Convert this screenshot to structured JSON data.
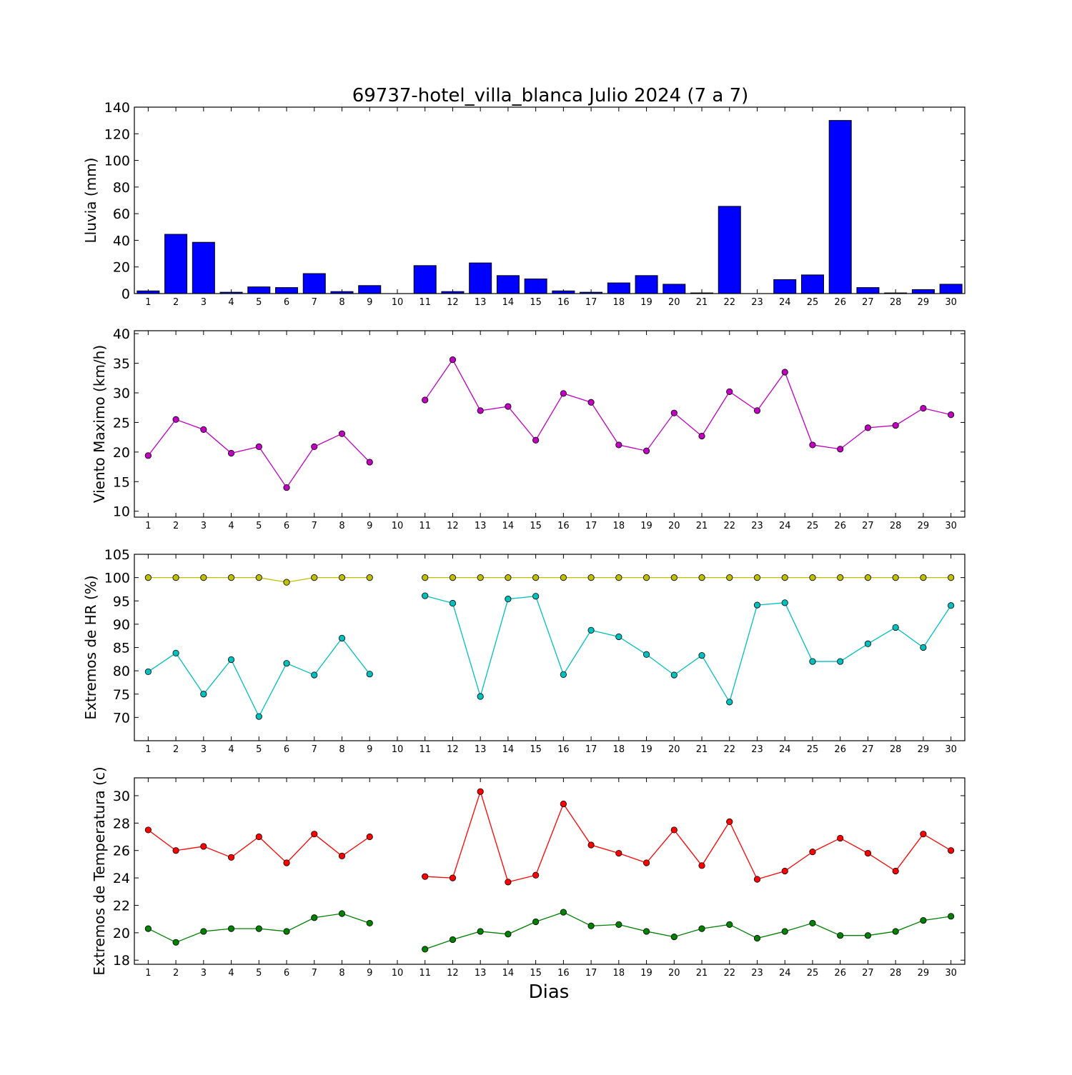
{
  "title": "69737-hotel_villa_blanca Julio 2024  (7 a 7)",
  "xlabel": "Dias",
  "days": [
    1,
    2,
    3,
    4,
    5,
    6,
    7,
    8,
    9,
    10,
    11,
    12,
    13,
    14,
    15,
    16,
    17,
    18,
    19,
    20,
    21,
    22,
    23,
    24,
    25,
    26,
    27,
    28,
    29,
    30
  ],
  "chart_data": [
    {
      "type": "bar",
      "ylabel": "Lluvia (mm)",
      "ylim": [
        0,
        140
      ],
      "yticks": [
        0,
        20,
        40,
        60,
        80,
        100,
        120,
        140
      ],
      "categories": [
        1,
        2,
        3,
        4,
        5,
        6,
        7,
        8,
        9,
        10,
        11,
        12,
        13,
        14,
        15,
        16,
        17,
        18,
        19,
        20,
        21,
        22,
        23,
        24,
        25,
        26,
        27,
        28,
        29,
        30
      ],
      "series": [
        {
          "color": "#0000ff",
          "values": [
            2,
            44.5,
            38.5,
            1,
            5,
            4.5,
            15,
            1.5,
            6,
            0,
            21,
            1.5,
            23,
            13.5,
            11,
            2,
            1,
            8,
            13.5,
            7,
            0.5,
            65.5,
            0,
            10.5,
            14,
            130,
            4.5,
            0.5,
            3,
            7
          ]
        }
      ]
    },
    {
      "type": "line",
      "ylabel": "Viento Maximo (km/h)",
      "ylim": [
        9,
        40.5
      ],
      "yticks": [
        10,
        15,
        20,
        25,
        30,
        35,
        40
      ],
      "x": [
        1,
        2,
        3,
        4,
        5,
        6,
        7,
        8,
        9,
        10,
        11,
        12,
        13,
        14,
        15,
        16,
        17,
        18,
        19,
        20,
        21,
        22,
        23,
        24,
        25,
        26,
        27,
        28,
        29,
        30
      ],
      "series": [
        {
          "color": "#bf00bf",
          "values": [
            19.4,
            25.5,
            23.8,
            19.8,
            20.9,
            14.0,
            20.9,
            23.1,
            18.3,
            null,
            28.8,
            35.6,
            27.0,
            27.7,
            22.0,
            29.9,
            28.4,
            21.2,
            20.2,
            26.6,
            22.7,
            30.2,
            27.0,
            33.5,
            21.2,
            20.5,
            24.1,
            24.5,
            27.4,
            26.3
          ]
        }
      ]
    },
    {
      "type": "line",
      "ylabel": "Extremos de HR (%)",
      "ylim": [
        65,
        105
      ],
      "yticks": [
        70,
        75,
        80,
        85,
        90,
        95,
        100,
        105
      ],
      "x": [
        1,
        2,
        3,
        4,
        5,
        6,
        7,
        8,
        9,
        10,
        11,
        12,
        13,
        14,
        15,
        16,
        17,
        18,
        19,
        20,
        21,
        22,
        23,
        24,
        25,
        26,
        27,
        28,
        29,
        30
      ],
      "series": [
        {
          "color": "#bfbf00",
          "values": [
            100,
            100,
            100,
            100,
            100,
            99,
            100,
            100,
            100,
            null,
            100,
            100,
            100,
            100,
            100,
            100,
            100,
            100,
            100,
            100,
            100,
            100,
            100,
            100,
            100,
            100,
            100,
            100,
            100,
            100
          ]
        },
        {
          "color": "#00bfbf",
          "values": [
            79.8,
            83.8,
            75.0,
            82.4,
            70.2,
            81.6,
            79.1,
            87.0,
            79.3,
            null,
            96.1,
            94.5,
            74.5,
            95.4,
            96.0,
            79.2,
            88.7,
            87.3,
            83.5,
            79.1,
            83.3,
            73.3,
            94.1,
            94.6,
            82.0,
            82.0,
            85.8,
            89.3,
            85.0,
            94.0
          ]
        }
      ]
    },
    {
      "type": "line",
      "ylabel": "Extremos de Temperatura (c)",
      "ylim": [
        17.7,
        31.3
      ],
      "yticks": [
        18,
        20,
        22,
        24,
        26,
        28,
        30
      ],
      "x": [
        1,
        2,
        3,
        4,
        5,
        6,
        7,
        8,
        9,
        10,
        11,
        12,
        13,
        14,
        15,
        16,
        17,
        18,
        19,
        20,
        21,
        22,
        23,
        24,
        25,
        26,
        27,
        28,
        29,
        30
      ],
      "series": [
        {
          "color": "#ff0000",
          "values": [
            27.5,
            26.0,
            26.3,
            25.5,
            27.0,
            25.1,
            27.2,
            25.6,
            27.0,
            null,
            24.1,
            24.0,
            30.3,
            23.7,
            24.2,
            29.4,
            26.4,
            25.8,
            25.1,
            27.5,
            24.9,
            28.1,
            23.9,
            24.5,
            25.9,
            26.9,
            25.8,
            24.5,
            27.2,
            26.0
          ]
        },
        {
          "color": "#008000",
          "values": [
            20.3,
            19.3,
            20.1,
            20.3,
            20.3,
            20.1,
            21.1,
            21.4,
            20.7,
            null,
            18.8,
            19.5,
            20.1,
            19.9,
            20.8,
            21.5,
            20.5,
            20.6,
            20.1,
            19.7,
            20.3,
            20.6,
            19.6,
            20.1,
            20.7,
            19.8,
            19.8,
            20.1,
            20.9,
            21.2
          ]
        }
      ]
    }
  ]
}
